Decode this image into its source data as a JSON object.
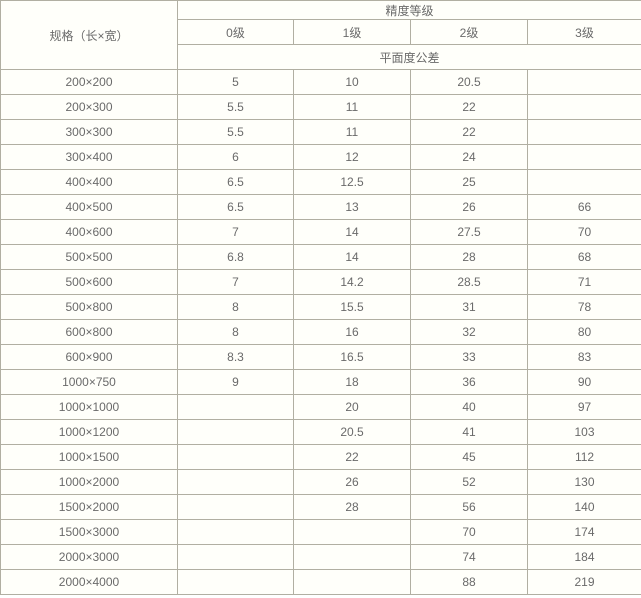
{
  "table": {
    "spec_header": "规格（长×宽）",
    "group_header": "精度等级",
    "grade_headers": [
      "0级",
      "1级",
      "2级",
      "3级"
    ],
    "sub_header": "平面度公差",
    "rows": [
      {
        "spec": "200×200",
        "values": [
          "5",
          "10",
          "20.5",
          ""
        ]
      },
      {
        "spec": "200×300",
        "values": [
          "5.5",
          "11",
          "22",
          ""
        ]
      },
      {
        "spec": "300×300",
        "values": [
          "5.5",
          "11",
          "22",
          ""
        ]
      },
      {
        "spec": "300×400",
        "values": [
          "6",
          "12",
          "24",
          ""
        ]
      },
      {
        "spec": "400×400",
        "values": [
          "6.5",
          "12.5",
          "25",
          ""
        ]
      },
      {
        "spec": "400×500",
        "values": [
          "6.5",
          "13",
          "26",
          "66"
        ]
      },
      {
        "spec": "400×600",
        "values": [
          "7",
          "14",
          "27.5",
          "70"
        ]
      },
      {
        "spec": "500×500",
        "values": [
          "6.8",
          "14",
          "28",
          "68"
        ]
      },
      {
        "spec": "500×600",
        "values": [
          "7",
          "14.2",
          "28.5",
          "71"
        ]
      },
      {
        "spec": "500×800",
        "values": [
          "8",
          "15.5",
          "31",
          "78"
        ]
      },
      {
        "spec": "600×800",
        "values": [
          "8",
          "16",
          "32",
          "80"
        ]
      },
      {
        "spec": "600×900",
        "values": [
          "8.3",
          "16.5",
          "33",
          "83"
        ]
      },
      {
        "spec": "1000×750",
        "values": [
          "9",
          "18",
          "36",
          "90"
        ]
      },
      {
        "spec": "1000×1000",
        "values": [
          "",
          "20",
          "40",
          "97"
        ]
      },
      {
        "spec": "1000×1200",
        "values": [
          "",
          "20.5",
          "41",
          "103"
        ]
      },
      {
        "spec": "1000×1500",
        "values": [
          "",
          "22",
          "45",
          "112"
        ]
      },
      {
        "spec": "1000×2000",
        "values": [
          "",
          "26",
          "52",
          "130"
        ]
      },
      {
        "spec": "1500×2000",
        "values": [
          "",
          "28",
          "56",
          "140"
        ]
      },
      {
        "spec": "1500×3000",
        "values": [
          "",
          "",
          "70",
          "174"
        ]
      },
      {
        "spec": "2000×3000",
        "values": [
          "",
          "",
          "74",
          "184"
        ]
      },
      {
        "spec": "2000×4000",
        "values": [
          "",
          "",
          "88",
          "219"
        ]
      }
    ]
  },
  "chart_data": {
    "type": "table",
    "title": "精度等级 平面度公差",
    "columns": [
      "规格（长×宽）",
      "0级",
      "1级",
      "2级",
      "3级"
    ],
    "rows": [
      [
        "200×200",
        5,
        10,
        20.5,
        null
      ],
      [
        "200×300",
        5.5,
        11,
        22,
        null
      ],
      [
        "300×300",
        5.5,
        11,
        22,
        null
      ],
      [
        "300×400",
        6,
        12,
        24,
        null
      ],
      [
        "400×400",
        6.5,
        12.5,
        25,
        null
      ],
      [
        "400×500",
        6.5,
        13,
        26,
        66
      ],
      [
        "400×600",
        7,
        14,
        27.5,
        70
      ],
      [
        "500×500",
        6.8,
        14,
        28,
        68
      ],
      [
        "500×600",
        7,
        14.2,
        28.5,
        71
      ],
      [
        "500×800",
        8,
        15.5,
        31,
        78
      ],
      [
        "600×800",
        8,
        16,
        32,
        80
      ],
      [
        "600×900",
        8.3,
        16.5,
        33,
        83
      ],
      [
        "1000×750",
        9,
        18,
        36,
        90
      ],
      [
        "1000×1000",
        null,
        20,
        40,
        97
      ],
      [
        "1000×1200",
        null,
        20.5,
        41,
        103
      ],
      [
        "1000×1500",
        null,
        22,
        45,
        112
      ],
      [
        "1000×2000",
        null,
        26,
        52,
        130
      ],
      [
        "1500×2000",
        null,
        28,
        56,
        140
      ],
      [
        "1500×3000",
        null,
        null,
        70,
        174
      ],
      [
        "2000×3000",
        null,
        null,
        74,
        184
      ],
      [
        "2000×4000",
        null,
        null,
        88,
        219
      ]
    ]
  },
  "colors": {
    "border": "#b1afa2",
    "text": "#6a6a6a",
    "background": "#fffffa"
  }
}
